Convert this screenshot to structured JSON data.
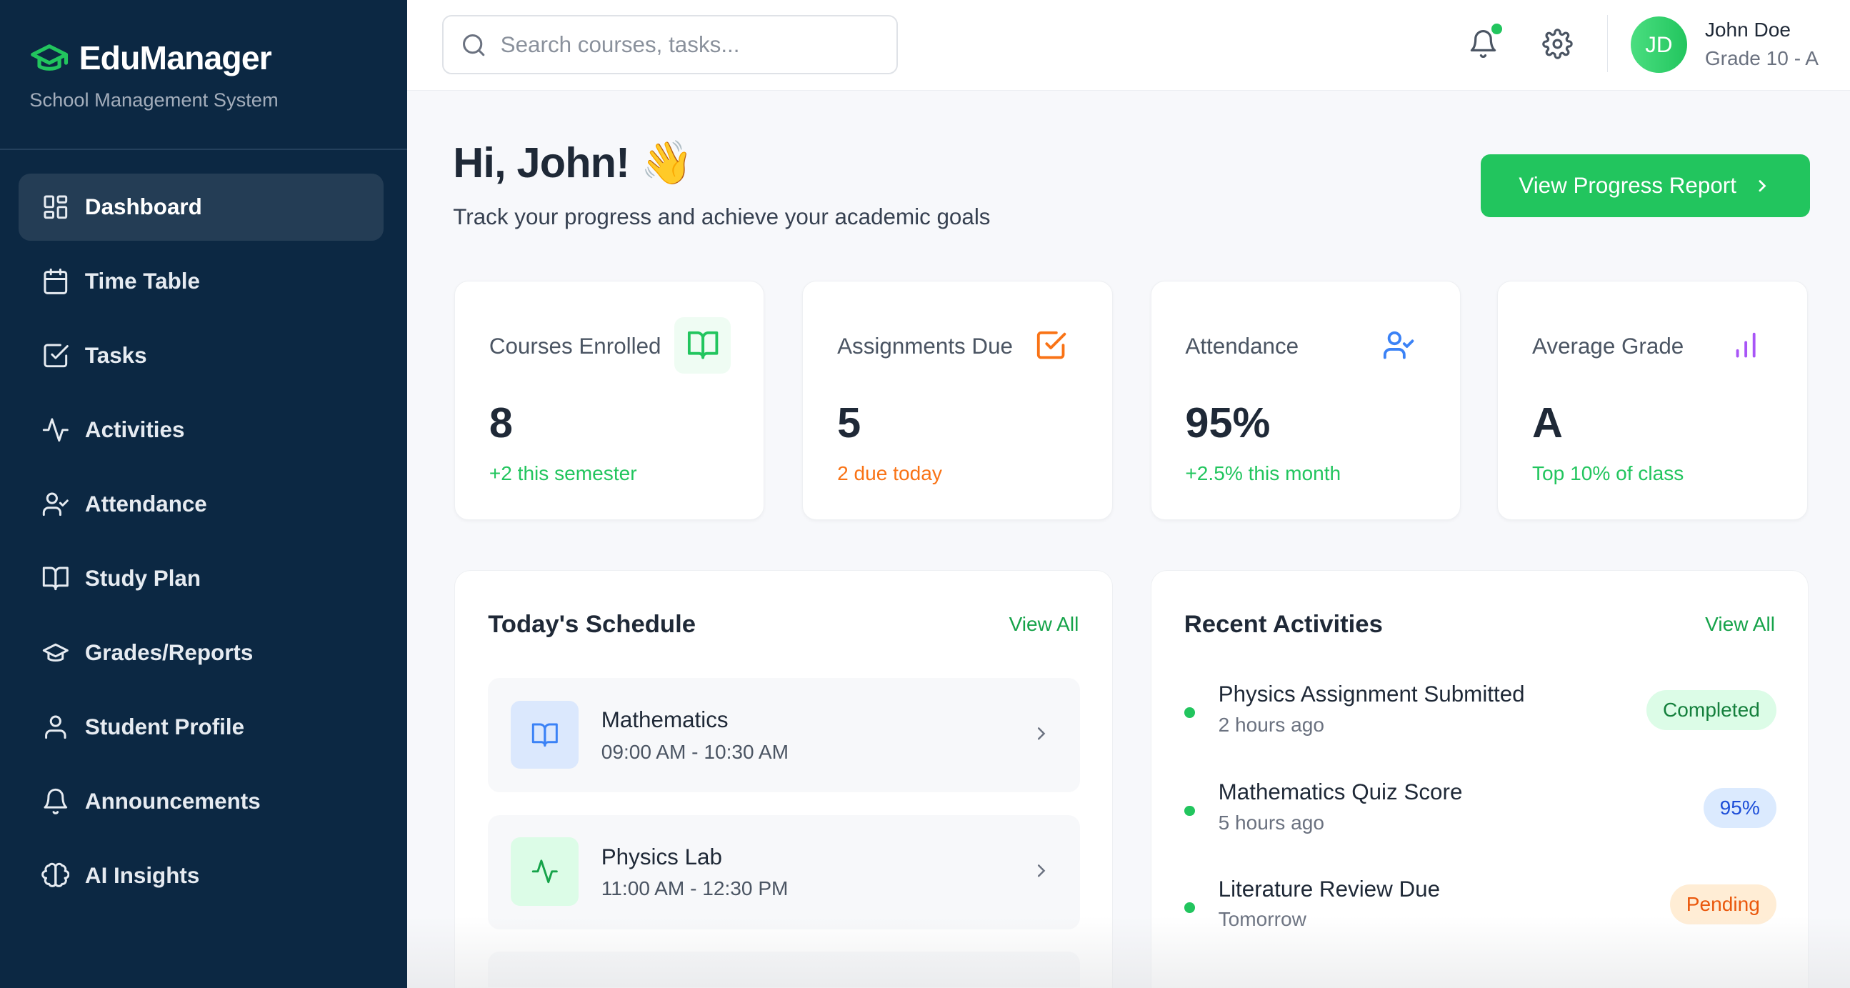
{
  "brand": {
    "name": "EduManager",
    "subtitle": "School Management System",
    "accent": "#22c55e"
  },
  "sidebar": {
    "items": [
      {
        "label": "Dashboard",
        "icon": "layout-dashboard-icon",
        "active": true
      },
      {
        "label": "Time Table",
        "icon": "calendar-icon"
      },
      {
        "label": "Tasks",
        "icon": "check-square-icon"
      },
      {
        "label": "Activities",
        "icon": "activity-icon"
      },
      {
        "label": "Attendance",
        "icon": "user-check-icon"
      },
      {
        "label": "Study Plan",
        "icon": "book-open-icon"
      },
      {
        "label": "Grades/Reports",
        "icon": "graduation-cap-icon"
      },
      {
        "label": "Student Profile",
        "icon": "user-icon"
      },
      {
        "label": "Announcements",
        "icon": "bell-icon"
      },
      {
        "label": "AI Insights",
        "icon": "brain-icon"
      }
    ]
  },
  "header": {
    "search_placeholder": "Search courses, tasks...",
    "user": {
      "initials": "JD",
      "name": "John Doe",
      "grade": "Grade 10 - A"
    },
    "notification_dot": true
  },
  "main": {
    "greeting": "Hi, John! 👋",
    "subtitle": "Track your progress and achieve your academic goals",
    "cta_label": "View Progress Report",
    "stats": [
      {
        "label": "Courses Enrolled",
        "value": "8",
        "note": "+2 this semester",
        "color": "#22c55e",
        "icon": "book-open-icon"
      },
      {
        "label": "Assignments Due",
        "value": "5",
        "note": "2 due today",
        "color": "#f97316",
        "icon": "check-square-icon"
      },
      {
        "label": "Attendance",
        "value": "95%",
        "note": "+2.5% this month",
        "color": "#3b82f6",
        "icon": "user-check-icon"
      },
      {
        "label": "Average Grade",
        "value": "A",
        "note": "Top 10% of class",
        "color": "#a855f7",
        "icon": "bar-chart-icon"
      }
    ],
    "schedule": {
      "title": "Today's Schedule",
      "view_all": "View All",
      "items": [
        {
          "name": "Mathematics",
          "time": "09:00 AM - 10:30 AM",
          "icon": "book-open-icon"
        },
        {
          "name": "Physics Lab",
          "time": "11:00 AM - 12:30 PM",
          "icon": "activity-icon"
        }
      ]
    },
    "activities": {
      "title": "Recent Activities",
      "view_all": "View All",
      "items": [
        {
          "name": "Physics Assignment Submitted",
          "time": "2 hours ago",
          "badge": "Completed"
        },
        {
          "name": "Mathematics Quiz Score",
          "time": "5 hours ago",
          "badge": "95%"
        },
        {
          "name": "Literature Review Due",
          "time": "Tomorrow",
          "badge": "Pending"
        }
      ]
    }
  }
}
